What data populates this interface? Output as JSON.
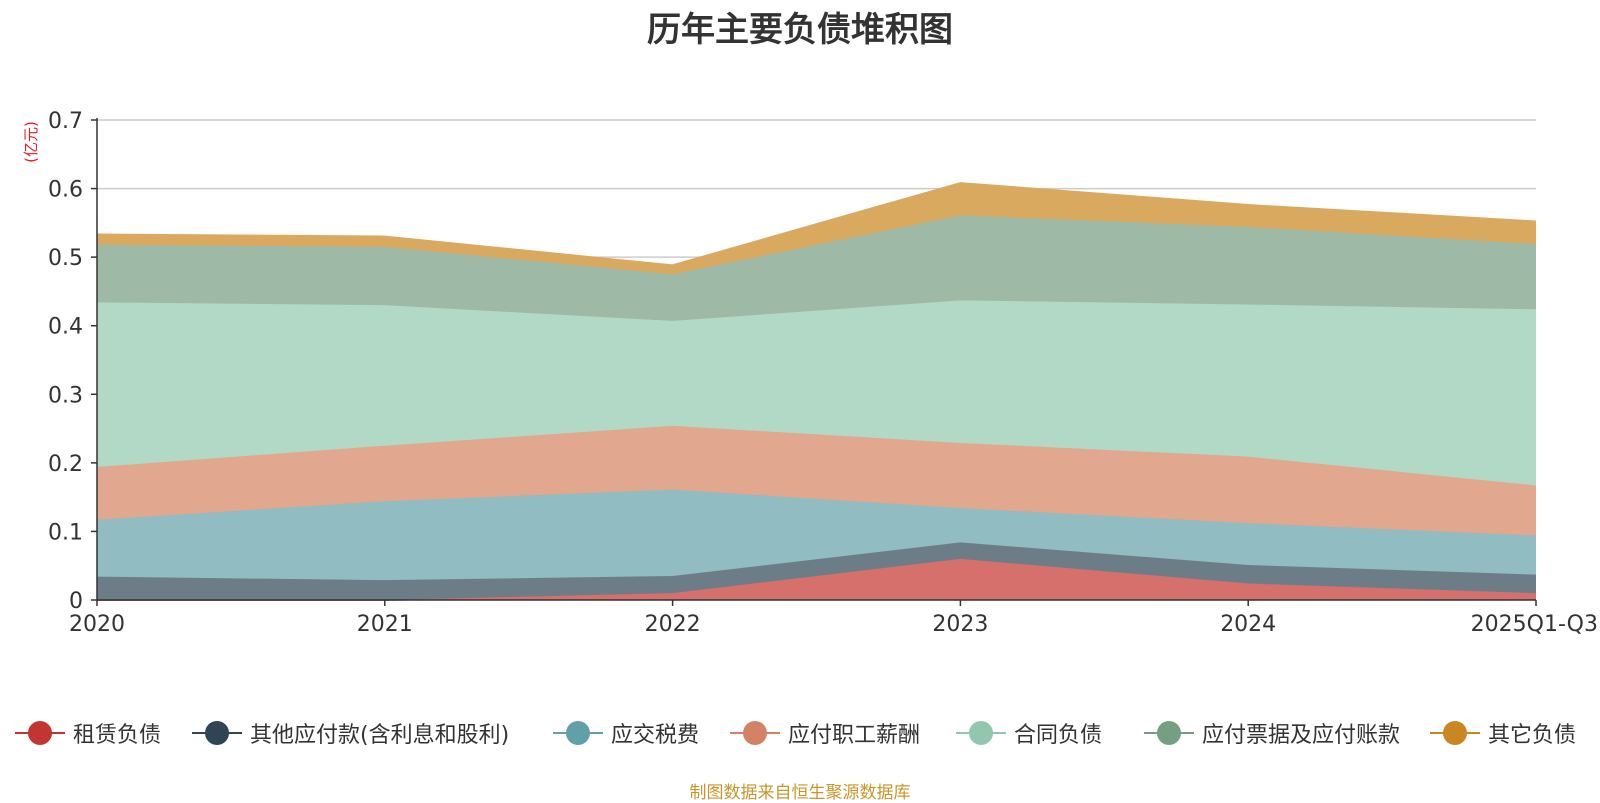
{
  "chart_data": {
    "type": "area",
    "stacked": true,
    "title": "历年主要负债堆积图",
    "unit_label": "(亿元)",
    "source": "制图数据来自恒生聚源数据库",
    "categories": [
      "2020",
      "2021",
      "2022",
      "2023",
      "2024",
      "2025Q1-Q3"
    ],
    "ylim": [
      0,
      0.7
    ],
    "yticks": [
      "0",
      "0.1",
      "0.2",
      "0.3",
      "0.4",
      "0.5",
      "0.6",
      "0.7"
    ],
    "grid": true,
    "legend_position": "bottom",
    "series": [
      {
        "name": "租赁负债",
        "values": [
          0.0,
          0.0,
          0.01,
          0.06,
          0.024,
          0.01
        ],
        "line_color": "#c23531",
        "fill_color": "#d5706d"
      },
      {
        "name": "其他应付款(含利息和股利)",
        "values": [
          0.034,
          0.029,
          0.025,
          0.024,
          0.027,
          0.027
        ],
        "line_color": "#2f4554",
        "fill_color": "#6d7d87"
      },
      {
        "name": "应交税费",
        "values": [
          0.083,
          0.115,
          0.126,
          0.05,
          0.061,
          0.057
        ],
        "line_color": "#61a0a8",
        "fill_color": "#90bcc2"
      },
      {
        "name": "应付职工薪酬",
        "values": [
          0.077,
          0.081,
          0.093,
          0.095,
          0.097,
          0.073
        ],
        "line_color": "#d48265",
        "fill_color": "#e1a78f"
      },
      {
        "name": "合同负债",
        "values": [
          0.24,
          0.205,
          0.153,
          0.208,
          0.222,
          0.257
        ],
        "line_color": "#91c7ae",
        "fill_color": "#b2d8c6"
      },
      {
        "name": "应付票据及应付账款",
        "values": [
          0.084,
          0.085,
          0.068,
          0.124,
          0.113,
          0.095
        ],
        "line_color": "#749f83",
        "fill_color": "#9eb9a6"
      },
      {
        "name": "其它负债",
        "values": [
          0.015,
          0.015,
          0.013,
          0.047,
          0.032,
          0.033
        ],
        "line_color": "#ca8622",
        "fill_color": "#d9a960"
      }
    ]
  }
}
